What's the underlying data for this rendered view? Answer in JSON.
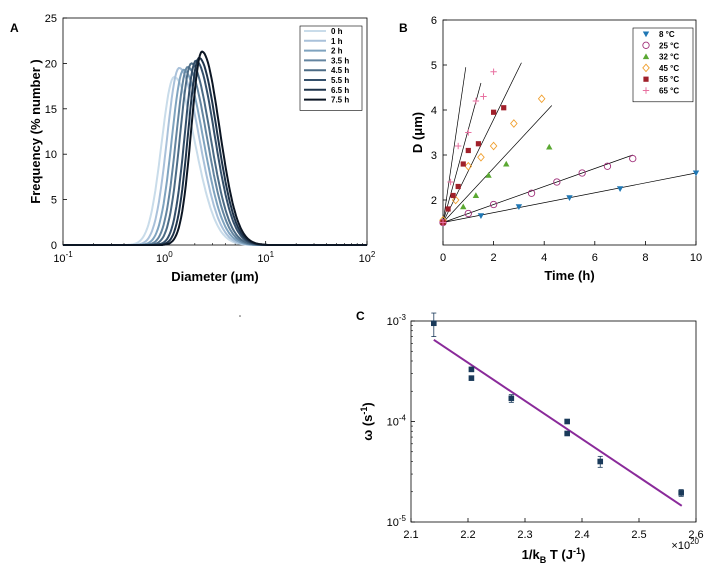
{
  "panels": {
    "a": {
      "label": "A"
    },
    "b": {
      "label": "B"
    },
    "c": {
      "label": "C"
    }
  },
  "chart_data": [
    {
      "panel": "A",
      "type": "line",
      "xscale": "log",
      "xlim": [
        0.1,
        100
      ],
      "ylim": [
        0,
        25
      ],
      "xlabel": "Diameter (μm)",
      "ylabel": "Frequency (% number )",
      "xticks": [
        "10^-1",
        "10^0",
        "10^1",
        "10^2"
      ],
      "yticks": [
        "0",
        "5",
        "10",
        "15",
        "20",
        "25"
      ],
      "legend_position": "top-right",
      "series": [
        {
          "name": "0 h",
          "peak_d": 1.25,
          "peak_f": 18.5,
          "sigma": 0.5,
          "color": "#c9dcea"
        },
        {
          "name": "1 h",
          "peak_d": 1.4,
          "peak_f": 19.5,
          "sigma": 0.48,
          "color": "#a9c1da"
        },
        {
          "name": "2 h",
          "peak_d": 1.55,
          "peak_f": 19.3,
          "sigma": 0.47,
          "color": "#7fa3bf"
        },
        {
          "name": "3.5 h",
          "peak_d": 1.7,
          "peak_f": 19.6,
          "sigma": 0.46,
          "color": "#6485a0"
        },
        {
          "name": "4.5 h",
          "peak_d": 1.85,
          "peak_f": 20.0,
          "sigma": 0.45,
          "color": "#4c6b85"
        },
        {
          "name": "5.5 h",
          "peak_d": 2.05,
          "peak_f": 20.3,
          "sigma": 0.44,
          "color": "#35506b"
        },
        {
          "name": "6.5 h",
          "peak_d": 2.2,
          "peak_f": 20.6,
          "sigma": 0.43,
          "color": "#1f344b"
        },
        {
          "name": "7.5 h",
          "peak_d": 2.35,
          "peak_f": 21.3,
          "sigma": 0.42,
          "color": "#0c1624"
        }
      ]
    },
    {
      "panel": "B",
      "type": "scatter",
      "xlim": [
        0,
        10
      ],
      "ylim": [
        1,
        6
      ],
      "xlabel": "Time (h)",
      "ylabel": "D (μm)",
      "xticks": [
        "0",
        "2",
        "4",
        "6",
        "8",
        "10"
      ],
      "yticks": [
        "2",
        "3",
        "4",
        "5",
        "6"
      ],
      "legend_position": "top-right",
      "series": [
        {
          "name": "8 °C",
          "marker": "triangle-down",
          "color": "#1f77b4",
          "fit": [
            0,
            1.5,
            10,
            2.6
          ],
          "x": [
            0,
            1.5,
            3,
            5,
            7,
            10
          ],
          "y": [
            1.5,
            1.65,
            1.85,
            2.05,
            2.25,
            2.6
          ]
        },
        {
          "name": "25 °C",
          "marker": "circle-open",
          "color": "#a0307a",
          "fit": [
            0,
            1.5,
            7.5,
            3.0
          ],
          "x": [
            0,
            1,
            2,
            3.5,
            4.5,
            5.5,
            6.5,
            7.5
          ],
          "y": [
            1.5,
            1.7,
            1.9,
            2.15,
            2.4,
            2.6,
            2.75,
            2.92
          ]
        },
        {
          "name": "32 °C",
          "marker": "triangle-up",
          "color": "#5aa832",
          "fit": [
            0,
            1.5,
            4.3,
            4.1
          ],
          "x": [
            0,
            0.8,
            1.3,
            1.8,
            2.5,
            4.2
          ],
          "y": [
            1.5,
            1.85,
            2.1,
            2.55,
            2.8,
            3.18
          ]
        },
        {
          "name": "45 °C",
          "marker": "diamond-open",
          "color": "#f0a030",
          "fit": [
            0,
            1.5,
            3.1,
            5.05
          ],
          "x": [
            0,
            0.5,
            1,
            1.5,
            2,
            2.8,
            3.9
          ],
          "y": [
            1.55,
            2.0,
            2.75,
            2.95,
            3.2,
            3.7,
            4.25
          ]
        },
        {
          "name": "55 °C",
          "marker": "square",
          "color": "#a0202a",
          "fit": [
            0,
            1.5,
            1.5,
            4.6
          ],
          "x": [
            0,
            0.2,
            0.4,
            0.6,
            0.8,
            1.0,
            1.4,
            2.0,
            2.4
          ],
          "y": [
            1.5,
            1.8,
            2.1,
            2.3,
            2.8,
            3.1,
            3.25,
            3.95,
            4.05
          ]
        },
        {
          "name": "65 °C",
          "marker": "plus",
          "color": "#e870a0",
          "fit": [
            0,
            1.5,
            0.9,
            4.95
          ],
          "x": [
            0,
            0.3,
            0.6,
            1.0,
            1.3,
            1.6,
            2.0
          ],
          "y": [
            1.5,
            2.4,
            3.2,
            3.5,
            4.2,
            4.3,
            4.85
          ]
        }
      ]
    },
    {
      "panel": "C",
      "type": "scatter",
      "yscale": "log",
      "xlim": [
        2.1,
        2.6
      ],
      "ylim": [
        1e-05,
        0.001
      ],
      "xlabel": "1/k_B T (J^-1)",
      "ylabel": "ω (s^-1)",
      "x_multiplier": "×10^20",
      "xticks": [
        "2.1",
        "2.2",
        "2.3",
        "2.4",
        "2.5",
        "2.6"
      ],
      "yticks": [
        "10^-5",
        "10^-4",
        "10^-3"
      ],
      "marker_color": "#1a3a5a",
      "fit_color": "#8a2a9a",
      "fit": {
        "x": [
          2.14,
          2.575
        ],
        "y": [
          0.00065,
          1.45e-05
        ]
      },
      "points": [
        {
          "x": 2.14,
          "y": 0.00095,
          "err": 0.00025
        },
        {
          "x": 2.206,
          "y": 0.00033,
          "err": 0
        },
        {
          "x": 2.206,
          "y": 0.00027,
          "err": 0
        },
        {
          "x": 2.276,
          "y": 0.00017,
          "err": 1.5e-05
        },
        {
          "x": 2.374,
          "y": 0.0001,
          "err": 0
        },
        {
          "x": 2.374,
          "y": 7.6e-05,
          "err": 0
        },
        {
          "x": 2.432,
          "y": 4e-05,
          "err": 5e-06
        },
        {
          "x": 2.574,
          "y": 1.95e-05,
          "err": 1.5e-06
        }
      ]
    }
  ]
}
